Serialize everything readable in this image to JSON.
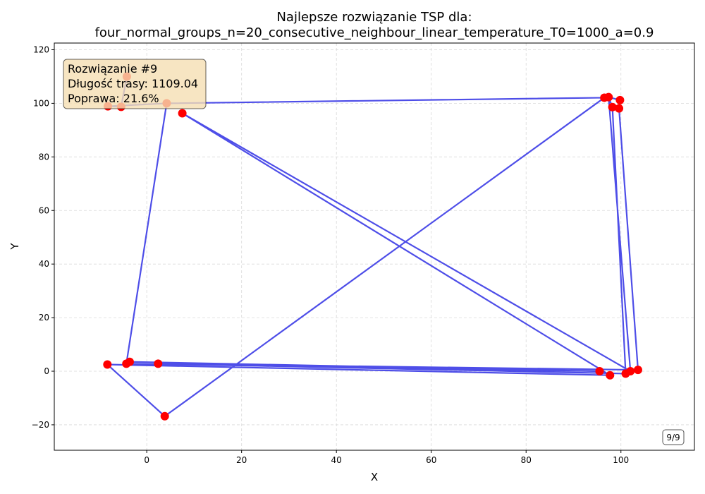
{
  "chart_data": {
    "type": "scatter",
    "title_line1": "Najlepsze rozwiązanie TSP dla:",
    "title_line2": "four_normal_groups_n=20_consecutive_neighbour_linear_temperature_T0=1000_a=0.9",
    "xlabel": "X",
    "ylabel": "Y",
    "xlim": [
      -19.5,
      115.5
    ],
    "ylim": [
      -29.5,
      122.5
    ],
    "xticks": [
      0,
      20,
      40,
      60,
      80,
      100
    ],
    "yticks": [
      -20,
      0,
      20,
      40,
      60,
      80,
      100,
      120
    ],
    "grid": true,
    "tick_labels_x": [
      "0",
      "20",
      "40",
      "60",
      "80",
      "100"
    ],
    "tick_labels_y": [
      "−20",
      "0",
      "20",
      "40",
      "60",
      "80",
      "100",
      "120"
    ],
    "route_color": "#3b3be6",
    "point_color": "#ff0000",
    "points": [
      {
        "x": -4.2,
        "y": 110.0
      },
      {
        "x": 4.2,
        "y": 100.0
      },
      {
        "x": 7.5,
        "y": 96.3
      },
      {
        "x": -8.2,
        "y": 98.9
      },
      {
        "x": -5.4,
        "y": 98.7
      },
      {
        "x": 96.5,
        "y": 102.1
      },
      {
        "x": 97.4,
        "y": 102.3
      },
      {
        "x": 99.8,
        "y": 101.2
      },
      {
        "x": 98.2,
        "y": 98.6
      },
      {
        "x": 99.6,
        "y": 98.1
      },
      {
        "x": -8.3,
        "y": 2.5
      },
      {
        "x": -4.3,
        "y": 2.8
      },
      {
        "x": -3.6,
        "y": 3.5
      },
      {
        "x": 2.4,
        "y": 2.8
      },
      {
        "x": 3.8,
        "y": -16.8
      },
      {
        "x": 95.5,
        "y": 0.0
      },
      {
        "x": 97.7,
        "y": -1.5
      },
      {
        "x": 101.0,
        "y": -0.9
      },
      {
        "x": 102.0,
        "y": 0.0
      },
      {
        "x": 103.6,
        "y": 0.5
      }
    ],
    "route": [
      [
        -4.2,
        110.0
      ],
      [
        -5.4,
        98.7
      ],
      [
        -8.2,
        98.9
      ],
      [
        4.2,
        100.0
      ],
      [
        96.5,
        102.1
      ],
      [
        97.4,
        102.3
      ],
      [
        98.2,
        98.6
      ],
      [
        101.0,
        -0.9
      ],
      [
        2.4,
        2.8
      ],
      [
        103.6,
        0.5
      ],
      [
        99.6,
        98.1
      ],
      [
        99.8,
        101.2
      ],
      [
        97.4,
        102.3
      ],
      [
        102.0,
        0.0
      ],
      [
        7.5,
        96.3
      ],
      [
        97.7,
        -1.5
      ],
      [
        -8.3,
        2.5
      ],
      [
        3.8,
        -16.8
      ],
      [
        96.5,
        102.1
      ],
      [
        4.2,
        100.0
      ],
      [
        -4.3,
        2.8
      ],
      [
        -3.6,
        3.5
      ],
      [
        95.5,
        0.0
      ],
      [
        -4.3,
        2.8
      ]
    ]
  },
  "info_box": {
    "line1": "Rozwiązanie #9",
    "line2": "Długość trasy: 1109.04",
    "line3": "Poprawa: 21.6%"
  },
  "counter": "9/9"
}
